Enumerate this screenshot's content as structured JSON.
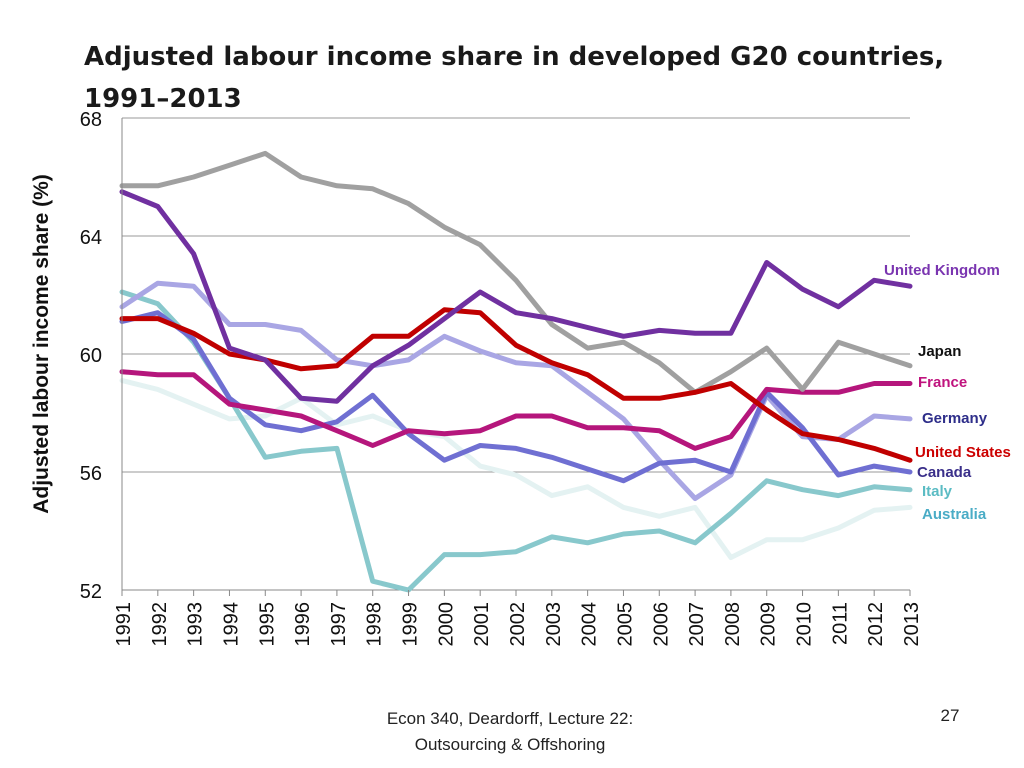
{
  "slide": {
    "title": "Adjusted labour income share in developed G20 countries, 1991–2013",
    "footer_line1": "Econ 340, Deardorff, Lecture 22:",
    "footer_line2": "Outsourcing & Offshoring",
    "page_number": "27"
  },
  "chart_data": {
    "type": "line",
    "title": "Adjusted labour income share in developed G20 countries, 1991–2013",
    "xlabel": "",
    "ylabel": "Adjusted labour income share (%)",
    "ylim": [
      52,
      68
    ],
    "yticks": [
      52,
      56,
      60,
      64,
      68
    ],
    "grid": true,
    "legend": "inline labels at right end of each line",
    "categories": [
      "1991",
      "1992",
      "1993",
      "1994",
      "1995",
      "1996",
      "1997",
      "1998",
      "1999",
      "2000",
      "2001",
      "2002",
      "2003",
      "2004",
      "2005",
      "2006",
      "2007",
      "2008",
      "2009",
      "2010",
      "2011",
      "2012",
      "2013"
    ],
    "series": [
      {
        "name": "Australia",
        "color": "#e4f2f2",
        "label_color": "#4aacc6",
        "values": [
          59.1,
          58.8,
          58.3,
          57.8,
          57.9,
          58.5,
          57.6,
          57.9,
          57.4,
          57.2,
          56.2,
          55.9,
          55.2,
          55.5,
          54.8,
          54.5,
          54.8,
          53.1,
          53.7,
          53.7,
          54.1,
          54.7,
          54.8
        ]
      },
      {
        "name": "Italy",
        "color": "#88c8cc",
        "label_color": "#5bbcc4",
        "values": [
          62.1,
          61.7,
          60.4,
          58.5,
          56.5,
          56.7,
          56.8,
          52.3,
          52.0,
          53.2,
          53.2,
          53.3,
          53.8,
          53.6,
          53.9,
          54.0,
          53.6,
          54.6,
          55.7,
          55.4,
          55.2,
          55.5,
          55.4
        ]
      },
      {
        "name": "Germany",
        "color": "#a9a6e4",
        "label_color": "#2e2e8a",
        "values": [
          61.6,
          62.4,
          62.3,
          61.0,
          61.0,
          60.8,
          59.8,
          59.6,
          59.8,
          60.6,
          60.1,
          59.7,
          59.6,
          58.7,
          57.8,
          56.4,
          55.1,
          55.9,
          58.6,
          57.2,
          57.1,
          57.9,
          57.8
        ]
      },
      {
        "name": "Canada",
        "color": "#6f6fd2",
        "label_color": "#3a2f8a",
        "values": [
          61.1,
          61.4,
          60.5,
          58.5,
          57.6,
          57.4,
          57.7,
          58.6,
          57.3,
          56.4,
          56.9,
          56.8,
          56.5,
          56.1,
          55.7,
          56.3,
          56.4,
          56.0,
          58.7,
          57.5,
          55.9,
          56.2,
          56.0
        ]
      },
      {
        "name": "France",
        "color": "#b5167c",
        "label_color": "#c0137e",
        "values": [
          59.4,
          59.3,
          59.3,
          58.3,
          58.1,
          57.9,
          57.4,
          56.9,
          57.4,
          57.3,
          57.4,
          57.9,
          57.9,
          57.5,
          57.5,
          57.4,
          56.8,
          57.2,
          58.8,
          58.7,
          58.7,
          59.0,
          59.0
        ]
      },
      {
        "name": "Japan",
        "color": "#a0a0a0",
        "label_color": "#111111",
        "values": [
          65.7,
          65.7,
          66.0,
          66.4,
          66.8,
          66.0,
          65.7,
          65.6,
          65.1,
          64.3,
          63.7,
          62.5,
          61.0,
          60.2,
          60.4,
          59.7,
          58.7,
          59.4,
          60.2,
          58.8,
          60.4,
          60.0,
          59.6
        ]
      },
      {
        "name": "United States",
        "color": "#c00000",
        "label_color": "#cc0000",
        "values": [
          61.2,
          61.2,
          60.7,
          60.0,
          59.8,
          59.5,
          59.6,
          60.6,
          60.6,
          61.5,
          61.4,
          60.3,
          59.7,
          59.3,
          58.5,
          58.5,
          58.7,
          59.0,
          58.1,
          57.3,
          57.1,
          56.8,
          56.4
        ]
      },
      {
        "name": "United Kingdom",
        "color": "#7030a0",
        "label_color": "#7a35b0",
        "values": [
          65.5,
          65.0,
          63.4,
          60.2,
          59.8,
          58.5,
          58.4,
          59.6,
          60.3,
          61.2,
          62.1,
          61.4,
          61.2,
          60.9,
          60.6,
          60.8,
          60.7,
          60.7,
          63.1,
          62.2,
          61.6,
          62.5,
          62.3
        ]
      }
    ]
  }
}
